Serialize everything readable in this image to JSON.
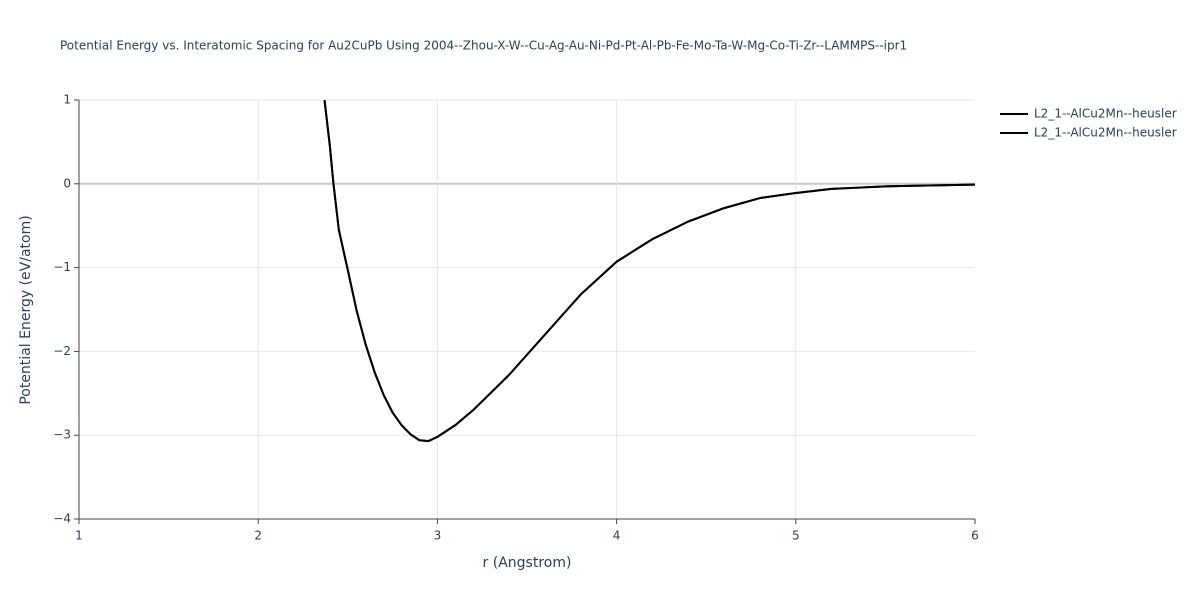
{
  "chart_data": {
    "type": "line",
    "title": "Potential Energy vs. Interatomic Spacing for Au2CuPb Using 2004--Zhou-X-W--Cu-Ag-Au-Ni-Pd-Pt-Al-Pb-Fe-Mo-Ta-W-Mg-Co-Ti-Zr--LAMMPS--ipr1",
    "x_label": "r (Angstrom)",
    "y_label": "Potential Energy (eV/atom)",
    "x": [
      2.37,
      2.4,
      2.42,
      2.45,
      2.5,
      2.55,
      2.6,
      2.65,
      2.7,
      2.75,
      2.8,
      2.85,
      2.9,
      2.95,
      3.0,
      3.1,
      3.2,
      3.4,
      3.6,
      3.8,
      4.0,
      4.2,
      4.4,
      4.6,
      4.8,
      5.0,
      5.2,
      5.5,
      6.0
    ],
    "series": [
      {
        "name": "L2_1--AlCu2Mn--heusler",
        "color": "#000000",
        "values": [
          1.0,
          0.45,
          0.0,
          -0.55,
          -1.03,
          -1.52,
          -1.92,
          -2.25,
          -2.52,
          -2.73,
          -2.88,
          -2.99,
          -3.06,
          -3.07,
          -3.02,
          -2.88,
          -2.7,
          -2.28,
          -1.8,
          -1.32,
          -0.93,
          -0.66,
          -0.45,
          -0.29,
          -0.17,
          -0.11,
          -0.06,
          -0.03,
          -0.01
        ]
      },
      {
        "name": "L2_1--AlCu2Mn--heusler",
        "color": "#000000",
        "values": [
          1.0,
          0.45,
          0.0,
          -0.55,
          -1.03,
          -1.52,
          -1.92,
          -2.25,
          -2.52,
          -2.73,
          -2.88,
          -2.99,
          -3.06,
          -3.07,
          -3.02,
          -2.88,
          -2.7,
          -2.28,
          -1.8,
          -1.32,
          -0.93,
          -0.66,
          -0.45,
          -0.29,
          -0.17,
          -0.11,
          -0.06,
          -0.03,
          -0.01
        ]
      }
    ],
    "xlim": [
      1,
      6
    ],
    "xticks": [
      1,
      2,
      3,
      4,
      5,
      6
    ],
    "ylim": [
      -4,
      1
    ],
    "yticks": [
      {
        "value": -4,
        "label": "−4"
      },
      {
        "value": -3,
        "label": "−3"
      },
      {
        "value": -2,
        "label": "−2"
      },
      {
        "value": -1,
        "label": "−1"
      },
      0,
      1
    ],
    "grid": true,
    "legend": "top-right"
  }
}
